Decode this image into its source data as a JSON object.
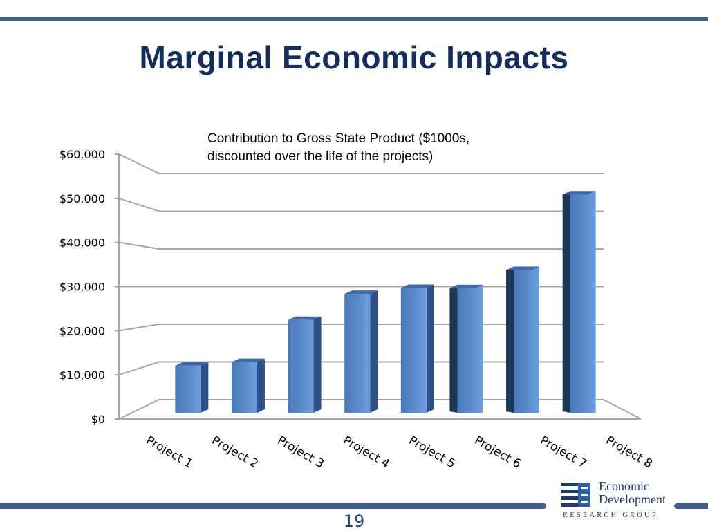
{
  "slide": {
    "title": "Marginal Economic Impacts",
    "page_number": "19"
  },
  "logo": {
    "line1": "Economic",
    "line2": "Development",
    "line3": "RESEARCH GROUP"
  },
  "colors": {
    "accent": "#3f5f8d",
    "title": "#132d5c",
    "bar_front": "#4f81bd",
    "bar_side": "#2f5189",
    "bar_dark": "#1d3557"
  },
  "chart_data": {
    "type": "bar",
    "title": "Contribution to Gross State Product ($1000s, discounted over the life of the projects)",
    "title_lines": [
      "Contribution to Gross State Product ($1000s,",
      "discounted over the life of the projects)"
    ],
    "categories": [
      "Project 1",
      "Project 2",
      "Project 3",
      "Project 4",
      "Project 5",
      "Project 6",
      "Project 7",
      "Project 8"
    ],
    "values": [
      10300,
      11100,
      20300,
      26000,
      27300,
      28000,
      32000,
      48500
    ],
    "ylim": [
      0,
      60000
    ],
    "yticks": [
      0,
      10000,
      20000,
      30000,
      40000,
      50000,
      60000
    ],
    "ytick_labels": [
      "$0",
      "$10,000",
      "$20,000",
      "$30,000",
      "$40,000",
      "$50,000",
      "$60,000"
    ],
    "xlabel": "",
    "ylabel": "",
    "grid": true,
    "legend": "none"
  }
}
